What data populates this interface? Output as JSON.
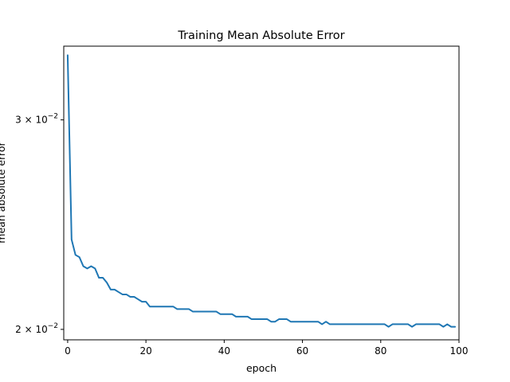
{
  "chart_data": {
    "type": "line",
    "title": "Training Mean Absolute Error",
    "xlabel": "epoch",
    "ylabel": "mean absolute error",
    "xlim": [
      -1,
      100
    ],
    "ylim": [
      0.0196,
      0.0346
    ],
    "yscale": "log",
    "grid": false,
    "xticks": [
      0,
      20,
      40,
      60,
      80,
      100
    ],
    "xtick_labels": [
      "0",
      "20",
      "40",
      "60",
      "80",
      "100"
    ],
    "yticks": [
      0.02,
      0.03
    ],
    "ytick_labels": [
      {
        "mantissa": "2",
        "times": "×",
        "base": "10",
        "exp": "−2"
      },
      {
        "mantissa": "3",
        "times": "×",
        "base": "10",
        "exp": "−2"
      }
    ],
    "color": "#1f77b4",
    "series": [
      {
        "x": [
          0,
          1,
          2,
          3,
          4,
          5,
          6,
          7,
          8,
          9,
          10,
          11,
          12,
          13,
          14,
          15,
          16,
          17,
          18,
          19,
          20,
          21,
          22,
          23,
          24,
          25,
          26,
          27,
          28,
          29,
          30,
          31,
          32,
          33,
          34,
          35,
          36,
          37,
          38,
          39,
          40,
          41,
          42,
          43,
          44,
          45,
          46,
          47,
          48,
          49,
          50,
          51,
          52,
          53,
          54,
          55,
          56,
          57,
          58,
          59,
          60,
          61,
          62,
          63,
          64,
          65,
          66,
          67,
          68,
          69,
          70,
          71,
          72,
          73,
          74,
          75,
          76,
          77,
          78,
          79,
          80,
          81,
          82,
          83,
          84,
          85,
          86,
          87,
          88,
          89,
          90,
          91,
          92,
          93,
          94,
          95,
          96,
          97,
          98,
          99
        ],
        "values": [
          0.034,
          0.0238,
          0.0231,
          0.023,
          0.0226,
          0.0225,
          0.0226,
          0.0225,
          0.0221,
          0.0221,
          0.0219,
          0.0216,
          0.0216,
          0.0215,
          0.0214,
          0.0214,
          0.0213,
          0.0213,
          0.0212,
          0.0211,
          0.0211,
          0.0209,
          0.0209,
          0.0209,
          0.0209,
          0.0209,
          0.0209,
          0.0209,
          0.0208,
          0.0208,
          0.0208,
          0.0208,
          0.0207,
          0.0207,
          0.0207,
          0.0207,
          0.0207,
          0.0207,
          0.0207,
          0.0206,
          0.0206,
          0.0206,
          0.0206,
          0.0205,
          0.0205,
          0.0205,
          0.0205,
          0.0204,
          0.0204,
          0.0204,
          0.0204,
          0.0204,
          0.0203,
          0.0203,
          0.0204,
          0.0204,
          0.0204,
          0.0203,
          0.0203,
          0.0203,
          0.0203,
          0.0203,
          0.0203,
          0.0203,
          0.0203,
          0.0202,
          0.0203,
          0.0202,
          0.0202,
          0.0202,
          0.0202,
          0.0202,
          0.0202,
          0.0202,
          0.0202,
          0.0202,
          0.0202,
          0.0202,
          0.0202,
          0.0202,
          0.0202,
          0.0202,
          0.0201,
          0.0202,
          0.0202,
          0.0202,
          0.0202,
          0.0202,
          0.0201,
          0.0202,
          0.0202,
          0.0202,
          0.0202,
          0.0202,
          0.0202,
          0.0202,
          0.0201,
          0.0202,
          0.0201,
          0.0201
        ]
      }
    ]
  }
}
